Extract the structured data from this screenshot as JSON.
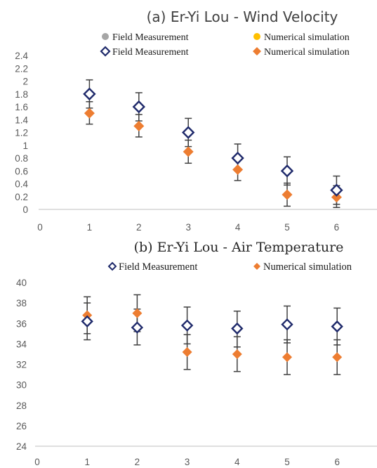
{
  "chart_data": [
    {
      "type": "scatter",
      "title": "(a) Er-Yi Lou - Wind Velocity",
      "legend_entries": [
        {
          "label": "Field Measurement",
          "color": "#a6a6a6",
          "marker": "circle"
        },
        {
          "label": "Numerical simulation",
          "color": "#ffc000",
          "marker": "circle"
        },
        {
          "label": "Field Measurement",
          "color": "#1f2a6b",
          "marker": "diamond-open"
        },
        {
          "label": "Numerical simulation",
          "color": "#ed7d31",
          "marker": "diamond"
        }
      ],
      "legend_position": "top",
      "x_ticks": [
        "0",
        "1",
        "2",
        "3",
        "4",
        "5",
        "6"
      ],
      "y_ticks": [
        "0",
        "0.2",
        "0.4",
        "0.6",
        "0.8",
        "1",
        "1.2",
        "1.4",
        "1.6",
        "1.8",
        "2",
        "2.2",
        "2.4"
      ],
      "xlim": [
        0,
        7
      ],
      "ylim": [
        0,
        2.4
      ],
      "grid": false,
      "series": [
        {
          "name": "Field Measurement",
          "color": "#1f2a6b",
          "marker": "diamond-open",
          "x": [
            1,
            2,
            3,
            4,
            5,
            6
          ],
          "y": [
            1.8,
            1.6,
            1.2,
            0.8,
            0.6,
            0.3
          ],
          "err_low": [
            1.58,
            1.38,
            0.98,
            0.6,
            0.38,
            0.08
          ],
          "err_high": [
            2.02,
            1.82,
            1.42,
            1.02,
            0.82,
            0.52
          ]
        },
        {
          "name": "Numerical simulation",
          "color": "#ed7d31",
          "marker": "diamond",
          "x": [
            1,
            2,
            3,
            4,
            5,
            6
          ],
          "y": [
            1.5,
            1.3,
            0.9,
            0.62,
            0.23,
            0.19
          ],
          "err_low": [
            1.33,
            1.13,
            0.72,
            0.45,
            0.05,
            0.03
          ],
          "err_high": [
            1.68,
            1.48,
            1.08,
            0.8,
            0.41,
            0.37
          ]
        }
      ]
    },
    {
      "type": "scatter",
      "title": "(b) Er-Yi Lou - Air Temperature",
      "legend_entries": [
        {
          "label": "Field Measurement",
          "color": "#1f2a6b",
          "marker": "diamond-open"
        },
        {
          "label": "Numerical simulation",
          "color": "#ed7d31",
          "marker": "diamond"
        }
      ],
      "legend_position": "top",
      "x_ticks": [
        "0",
        "1",
        "2",
        "3",
        "4",
        "5",
        "6"
      ],
      "y_ticks": [
        "24",
        "26",
        "28",
        "30",
        "32",
        "34",
        "36",
        "38",
        "40"
      ],
      "xlim": [
        0,
        7
      ],
      "ylim": [
        24,
        40
      ],
      "grid": false,
      "series": [
        {
          "name": "Field Measurement",
          "color": "#1f2a6b",
          "marker": "diamond-open",
          "x": [
            1,
            2,
            3,
            4,
            5,
            6
          ],
          "y": [
            36.2,
            35.6,
            35.8,
            35.5,
            35.9,
            35.7
          ],
          "err_low": [
            34.4,
            33.9,
            34.0,
            33.7,
            34.1,
            33.9
          ],
          "err_high": [
            38.0,
            37.4,
            37.6,
            37.2,
            37.7,
            37.5
          ]
        },
        {
          "name": "Numerical simulation",
          "color": "#ed7d31",
          "marker": "diamond",
          "x": [
            1,
            2,
            3,
            4,
            5,
            6
          ],
          "y": [
            36.8,
            37.0,
            33.2,
            33.0,
            32.7,
            32.7
          ],
          "err_low": [
            35.0,
            35.2,
            31.5,
            31.3,
            31.0,
            31.0
          ],
          "err_high": [
            38.6,
            38.8,
            34.9,
            34.7,
            34.4,
            34.4
          ]
        }
      ]
    }
  ]
}
